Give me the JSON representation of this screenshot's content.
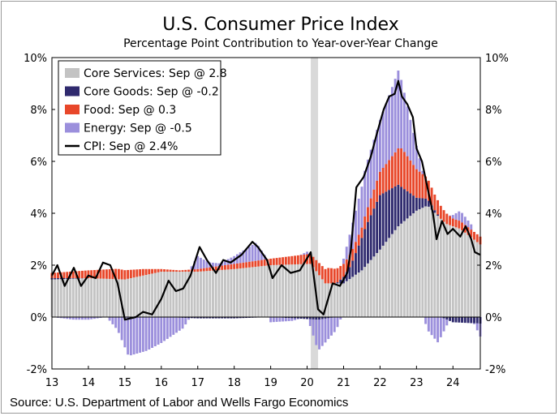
{
  "chart_data": {
    "type": "bar",
    "title": "U.S. Consumer Price Index",
    "subtitle": "Percentage Point Contribution to Year-over-Year Change",
    "source": "Source: U.S. Department of Labor and Wells Fargo Economics",
    "ylim": [
      -2,
      10
    ],
    "y_ticks": [
      "10%",
      "8%",
      "6%",
      "4%",
      "2%",
      "0%",
      "-2%"
    ],
    "y_tick_values": [
      10,
      8,
      6,
      4,
      2,
      0,
      -2
    ],
    "x_ticks": [
      "13",
      "14",
      "15",
      "16",
      "17",
      "18",
      "19",
      "20",
      "21",
      "22",
      "23",
      "24"
    ],
    "x_range": [
      2013.0,
      2024.75
    ],
    "recession_band": [
      2020.1,
      2020.3
    ],
    "legend_position": "top-left",
    "colors": {
      "core_services": "#c3c3c3",
      "core_goods": "#2f2a6e",
      "food": "#e8472a",
      "energy": "#9b8fdc",
      "cpi": "#000000",
      "recession": "#d9d9d9"
    },
    "legend": [
      {
        "key": "core_services",
        "label": "Core Services: Sep @ 2.8"
      },
      {
        "key": "core_goods",
        "label": "Core Goods: Sep @ -0.2"
      },
      {
        "key": "food",
        "label": "Food: Sep @ 0.3"
      },
      {
        "key": "energy",
        "label": "Energy: Sep @ -0.5"
      },
      {
        "key": "cpi",
        "label": "CPI: Sep @ 2.4%"
      }
    ],
    "series_knots": {
      "core_services": [
        [
          2013,
          1.45
        ],
        [
          2014,
          1.5
        ],
        [
          2015,
          1.45
        ],
        [
          2016,
          1.75
        ],
        [
          2017,
          1.75
        ],
        [
          2018,
          1.85
        ],
        [
          2019,
          2.0
        ],
        [
          2020.1,
          2.05
        ],
        [
          2020.5,
          1.3
        ],
        [
          2021,
          1.3
        ],
        [
          2021.5,
          1.8
        ],
        [
          2022,
          2.6
        ],
        [
          2022.5,
          3.5
        ],
        [
          2023,
          4.1
        ],
        [
          2023.3,
          4.3
        ],
        [
          2023.8,
          3.6
        ],
        [
          2024.2,
          3.4
        ],
        [
          2024.75,
          2.8
        ]
      ],
      "core_goods": [
        [
          2013,
          0.05
        ],
        [
          2014,
          0.0
        ],
        [
          2015,
          0.0
        ],
        [
          2016,
          0.0
        ],
        [
          2017,
          -0.05
        ],
        [
          2018,
          -0.05
        ],
        [
          2019,
          0.0
        ],
        [
          2020.3,
          -0.1
        ],
        [
          2020.8,
          0.0
        ],
        [
          2021.2,
          0.5
        ],
        [
          2021.6,
          1.5
        ],
        [
          2022,
          2.1
        ],
        [
          2022.5,
          1.6
        ],
        [
          2023,
          0.5
        ],
        [
          2023.5,
          0.1
        ],
        [
          2024,
          -0.2
        ],
        [
          2024.75,
          -0.25
        ]
      ],
      "food": [
        [
          2013,
          0.2
        ],
        [
          2014,
          0.3
        ],
        [
          2014.8,
          0.4
        ],
        [
          2015.5,
          0.25
        ],
        [
          2016,
          0.1
        ],
        [
          2016.5,
          0.05
        ],
        [
          2017,
          0.1
        ],
        [
          2018,
          0.2
        ],
        [
          2019,
          0.25
        ],
        [
          2020.2,
          0.4
        ],
        [
          2020.6,
          0.6
        ],
        [
          2021,
          0.5
        ],
        [
          2021.5,
          0.4
        ],
        [
          2022,
          0.9
        ],
        [
          2022.6,
          1.5
        ],
        [
          2023,
          1.1
        ],
        [
          2023.5,
          0.6
        ],
        [
          2024,
          0.3
        ],
        [
          2024.75,
          0.3
        ]
      ],
      "energy": [
        [
          2013,
          0.0
        ],
        [
          2013.6,
          -0.1
        ],
        [
          2014,
          -0.1
        ],
        [
          2014.5,
          0.0
        ],
        [
          2014.8,
          -0.5
        ],
        [
          2015.1,
          -1.5
        ],
        [
          2015.6,
          -1.3
        ],
        [
          2016,
          -1.0
        ],
        [
          2016.6,
          -0.4
        ],
        [
          2017,
          0.5
        ],
        [
          2017.3,
          0.2
        ],
        [
          2017.6,
          0.1
        ],
        [
          2018,
          0.3
        ],
        [
          2018.6,
          0.7
        ],
        [
          2019,
          -0.2
        ],
        [
          2019.6,
          -0.1
        ],
        [
          2020,
          0.1
        ],
        [
          2020.3,
          -1.2
        ],
        [
          2020.8,
          -0.5
        ],
        [
          2021.2,
          0.9
        ],
        [
          2021.6,
          1.8
        ],
        [
          2022,
          2.0
        ],
        [
          2022.5,
          3.0
        ],
        [
          2022.8,
          1.7
        ],
        [
          2023,
          0.9
        ],
        [
          2023.3,
          -0.5
        ],
        [
          2023.6,
          -1.0
        ],
        [
          2023.9,
          0.0
        ],
        [
          2024.2,
          0.4
        ],
        [
          2024.5,
          0.2
        ],
        [
          2024.75,
          -0.5
        ]
      ]
    },
    "cpi_line": [
      [
        2013,
        1.6
      ],
      [
        2013.15,
        2.0
      ],
      [
        2013.35,
        1.2
      ],
      [
        2013.6,
        1.9
      ],
      [
        2013.8,
        1.2
      ],
      [
        2014,
        1.6
      ],
      [
        2014.2,
        1.5
      ],
      [
        2014.4,
        2.1
      ],
      [
        2014.6,
        2.0
      ],
      [
        2014.8,
        1.3
      ],
      [
        2015,
        -0.1
      ],
      [
        2015.3,
        0.0
      ],
      [
        2015.5,
        0.2
      ],
      [
        2015.75,
        0.1
      ],
      [
        2016,
        0.7
      ],
      [
        2016.2,
        1.4
      ],
      [
        2016.4,
        1.0
      ],
      [
        2016.6,
        1.1
      ],
      [
        2016.8,
        1.6
      ],
      [
        2017.05,
        2.7
      ],
      [
        2017.25,
        2.2
      ],
      [
        2017.5,
        1.7
      ],
      [
        2017.7,
        2.2
      ],
      [
        2017.9,
        2.1
      ],
      [
        2018.2,
        2.4
      ],
      [
        2018.5,
        2.9
      ],
      [
        2018.65,
        2.7
      ],
      [
        2018.9,
        2.2
      ],
      [
        2019.05,
        1.5
      ],
      [
        2019.3,
        2.0
      ],
      [
        2019.55,
        1.7
      ],
      [
        2019.8,
        1.8
      ],
      [
        2020.1,
        2.5
      ],
      [
        2020.3,
        0.3
      ],
      [
        2020.45,
        0.1
      ],
      [
        2020.7,
        1.3
      ],
      [
        2020.9,
        1.2
      ],
      [
        2021.1,
        1.7
      ],
      [
        2021.2,
        2.6
      ],
      [
        2021.35,
        5.0
      ],
      [
        2021.55,
        5.4
      ],
      [
        2021.75,
        6.2
      ],
      [
        2021.9,
        7.0
      ],
      [
        2022.1,
        8.0
      ],
      [
        2022.25,
        8.5
      ],
      [
        2022.4,
        8.6
      ],
      [
        2022.5,
        9.1
      ],
      [
        2022.6,
        8.5
      ],
      [
        2022.75,
        8.2
      ],
      [
        2022.9,
        7.7
      ],
      [
        2023.0,
        6.5
      ],
      [
        2023.15,
        6.0
      ],
      [
        2023.3,
        5.0
      ],
      [
        2023.45,
        4.0
      ],
      [
        2023.55,
        3.0
      ],
      [
        2023.7,
        3.7
      ],
      [
        2023.85,
        3.2
      ],
      [
        2024.0,
        3.4
      ],
      [
        2024.2,
        3.1
      ],
      [
        2024.35,
        3.5
      ],
      [
        2024.5,
        3.0
      ],
      [
        2024.6,
        2.5
      ],
      [
        2024.75,
        2.4
      ]
    ]
  }
}
